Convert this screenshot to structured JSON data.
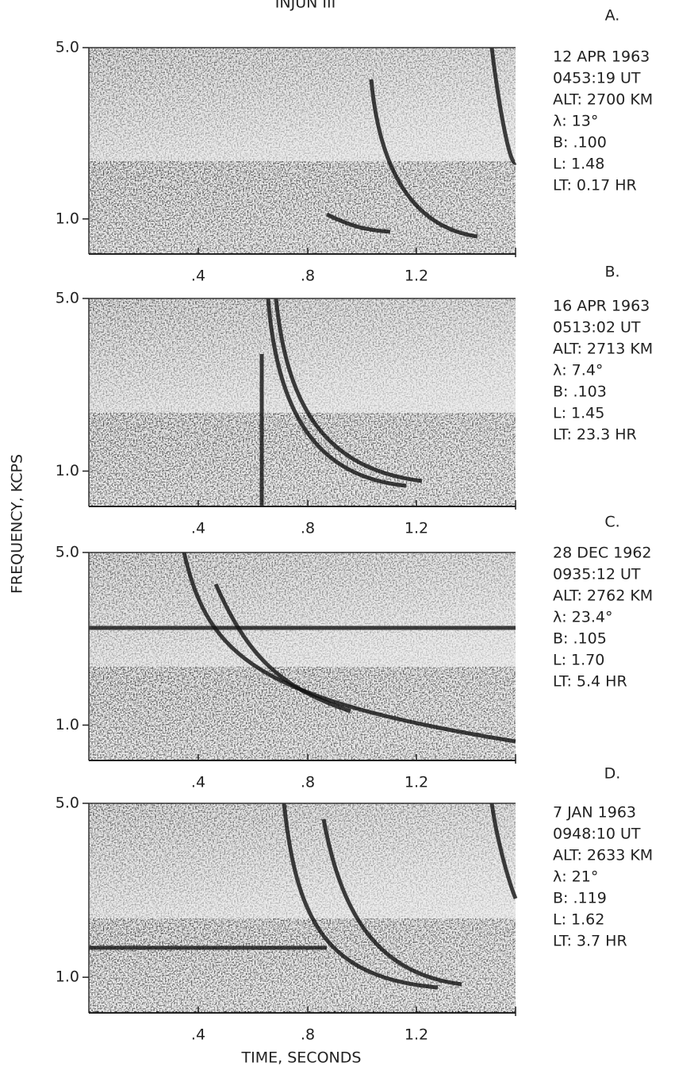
{
  "title": "INJUN III",
  "y_axis_label": "FREQUENCY, KCPS",
  "x_axis_label": "TIME, SECONDS",
  "panels": [
    {
      "letter": "A.",
      "yticks": [
        "5.0",
        "1.0"
      ],
      "xticks": [
        ".4",
        ".8",
        "1.2"
      ],
      "info": [
        "12 APR 1963",
        "0453:19 UT",
        "ALT: 2700 KM",
        "λ: 13°",
        "B: .100",
        "L: 1.48",
        "LT: 0.17 HR"
      ]
    },
    {
      "letter": "B.",
      "yticks": [
        "5.0",
        "1.0"
      ],
      "xticks": [
        ".4",
        ".8",
        "1.2"
      ],
      "info": [
        "16 APR 1963",
        "0513:02 UT",
        "ALT: 2713 KM",
        "λ: 7.4°",
        "B: .103",
        "L: 1.45",
        "LT: 23.3 HR"
      ]
    },
    {
      "letter": "C.",
      "yticks": [
        "5.0",
        "1.0"
      ],
      "xticks": [
        ".4",
        ".8",
        "1.2"
      ],
      "info": [
        "28 DEC 1962",
        "0935:12 UT",
        "ALT: 2762 KM",
        "λ: 23.4°",
        "B: .105",
        "L: 1.70",
        "LT: 5.4 HR"
      ]
    },
    {
      "letter": "D.",
      "yticks": [
        "5.0",
        "1.0"
      ],
      "xticks": [
        ".4",
        ".8",
        "1.2"
      ],
      "info": [
        "7 JAN 1963",
        "0948:10 UT",
        "ALT: 2633 KM",
        "λ: 21°",
        "B: .119",
        "L: 1.62",
        "LT: 3.7 HR"
      ]
    }
  ]
}
